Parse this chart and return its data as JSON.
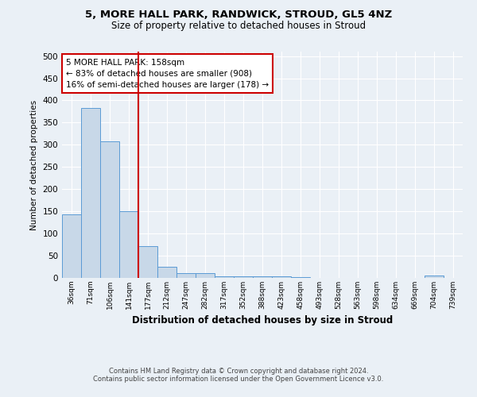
{
  "title1": "5, MORE HALL PARK, RANDWICK, STROUD, GL5 4NZ",
  "title2": "Size of property relative to detached houses in Stroud",
  "xlabel": "Distribution of detached houses by size in Stroud",
  "ylabel": "Number of detached properties",
  "bins": [
    "36sqm",
    "71sqm",
    "106sqm",
    "141sqm",
    "177sqm",
    "212sqm",
    "247sqm",
    "282sqm",
    "317sqm",
    "352sqm",
    "388sqm",
    "423sqm",
    "458sqm",
    "493sqm",
    "528sqm",
    "563sqm",
    "598sqm",
    "634sqm",
    "669sqm",
    "704sqm",
    "739sqm"
  ],
  "bar_heights": [
    143,
    383,
    307,
    150,
    72,
    25,
    10,
    10,
    3,
    3,
    3,
    3,
    2,
    0,
    0,
    0,
    0,
    0,
    0,
    5,
    0
  ],
  "bar_color": "#c8d8e8",
  "bar_edge_color": "#5b9bd5",
  "vline_color": "#cc0000",
  "annotation_text": "5 MORE HALL PARK: 158sqm\n← 83% of detached houses are smaller (908)\n16% of semi-detached houses are larger (178) →",
  "annotation_box_color": "#ffffff",
  "annotation_box_edge": "#cc0000",
  "ylim": [
    0,
    510
  ],
  "yticks": [
    0,
    50,
    100,
    150,
    200,
    250,
    300,
    350,
    400,
    450,
    500
  ],
  "footer1": "Contains HM Land Registry data © Crown copyright and database right 2024.",
  "footer2": "Contains public sector information licensed under the Open Government Licence v3.0.",
  "bg_color": "#eaf0f6",
  "plot_bg_color": "#eaf0f6",
  "grid_color": "#ffffff"
}
